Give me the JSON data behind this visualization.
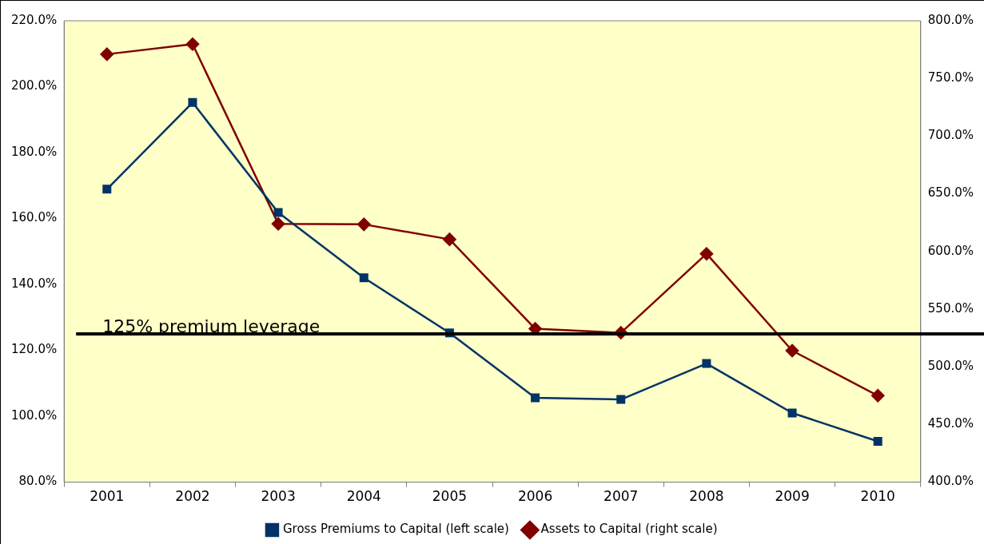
{
  "chart_data": {
    "type": "line",
    "categories": [
      "2001",
      "2002",
      "2003",
      "2004",
      "2005",
      "2006",
      "2007",
      "2008",
      "2009",
      "2010"
    ],
    "series": [
      {
        "name": "Gross Premiums to Capital (left scale)",
        "color": "#003366",
        "marker": "square",
        "values": [
          168.9,
          195.2,
          161.8,
          142,
          125.3,
          105.6,
          105.1,
          116,
          101,
          92.4
        ]
      },
      {
        "name": "Assets to Capital (right scale)",
        "color": "#800000",
        "marker": "diamond",
        "axis": "y2",
        "values": [
          771,
          779.7,
          624,
          623.5,
          610.5,
          533,
          529.5,
          598,
          514,
          475
        ]
      }
    ],
    "ylim": [
      80,
      220
    ],
    "yticks": [
      {
        "value": 80,
        "label": "80.0%"
      },
      {
        "value": 100,
        "label": "100.0%"
      },
      {
        "value": 120,
        "label": "120.0%"
      },
      {
        "value": 140,
        "label": "140.0%"
      },
      {
        "value": 160,
        "label": "160.0%"
      },
      {
        "value": 180,
        "label": "180.0%"
      },
      {
        "value": 200,
        "label": "200.0%"
      },
      {
        "value": 220,
        "label": "220.0%"
      }
    ],
    "y2lim": [
      400,
      800
    ],
    "y2ticks": [
      {
        "value": 400,
        "label": "400.0%"
      },
      {
        "value": 450,
        "label": "450.0%"
      },
      {
        "value": 500,
        "label": "500.0%"
      },
      {
        "value": 550,
        "label": "550.0%"
      },
      {
        "value": 600,
        "label": "600.0%"
      },
      {
        "value": 650,
        "label": "650.0%"
      },
      {
        "value": 700,
        "label": "700.0%"
      },
      {
        "value": 750,
        "label": "750.0%"
      },
      {
        "value": 800,
        "label": "800.0%"
      }
    ],
    "ref_lines": [
      {
        "axis": "y",
        "value": 125,
        "label": "125% premium leverage",
        "color": "#000000"
      }
    ],
    "grid": false,
    "legend": "bottom",
    "line_style": "solid"
  }
}
